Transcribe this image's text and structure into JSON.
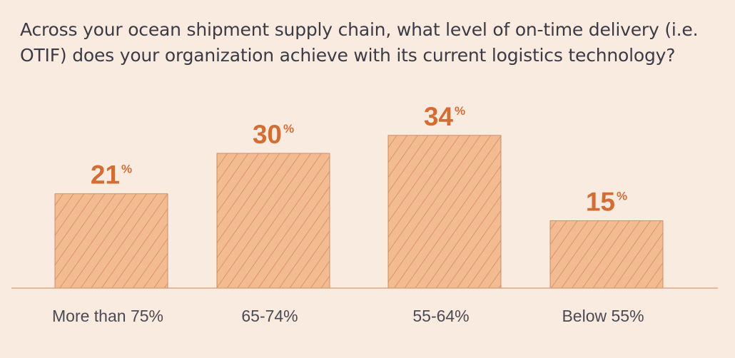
{
  "chart_data": {
    "type": "bar",
    "title": "Across your ocean shipment supply chain, what level of on-time delivery (i.e. OTIF) does your organization achieve with its current logistics technology?",
    "categories": [
      "More than 75%",
      "65-74%",
      "55-64%",
      "Below 55%"
    ],
    "values": [
      21,
      30,
      34,
      15
    ],
    "value_labels": [
      "21",
      "30",
      "34",
      "15"
    ],
    "value_suffix": "%",
    "xlabel": "",
    "ylabel": "",
    "ylim": [
      0,
      40
    ],
    "grid": false,
    "legend": "none"
  },
  "colors": {
    "background": "#faebe0",
    "bar_fill": "#f2bb91",
    "bar_hatch": "#c87d55",
    "value_text": "#d26e34",
    "axis_line": "#d89a73",
    "category_text": "#4a4a55",
    "title_text": "#3b3b45"
  }
}
